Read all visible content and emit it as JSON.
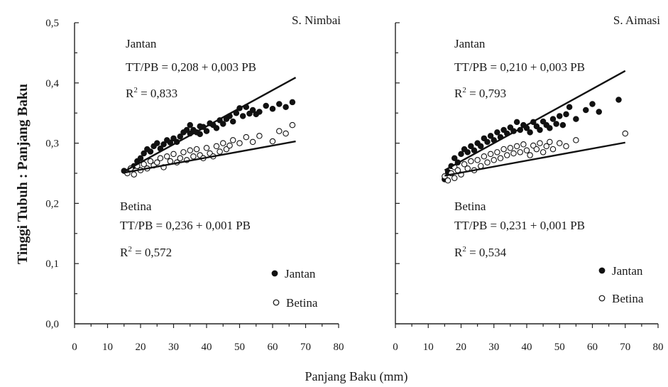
{
  "chart_data": [
    {
      "type": "scatter",
      "title": "S. Nimbai",
      "xlabel": "Panjang Baku (mm)",
      "ylabel": "Tinggi Tubuh : Panjang Baku",
      "xlim": [
        0,
        80
      ],
      "ylim": [
        0,
        0.5
      ],
      "x_ticks": [
        "0",
        "10",
        "20",
        "30",
        "40",
        "50",
        "60",
        "70",
        "80"
      ],
      "y_ticks": [
        "0,0",
        "0,1",
        "0,2",
        "0,3",
        "0,4",
        "0,5"
      ],
      "grid": false,
      "legend": {
        "position": "bottom-right",
        "entries": [
          {
            "marker": "filled-circle",
            "label": "Jantan"
          },
          {
            "marker": "open-circle",
            "label": "Betina"
          }
        ]
      },
      "annotations": {
        "jantan_label": "Jantan",
        "jantan_eq": "TT/PB = 0,208 + 0,003 PB",
        "jantan_r2_prefix": "R",
        "jantan_r2_value": " = 0,833",
        "betina_label": "Betina",
        "betina_eq": "TT/PB = 0,236 + 0,001 PB",
        "betina_r2_prefix": "R",
        "betina_r2_value": " = 0,572",
        "r2_exponent": "2"
      },
      "series": [
        {
          "name": "Jantan",
          "marker": "filled",
          "fit": {
            "intercept": 0.208,
            "slope": 0.003,
            "x_range": [
              15,
              67
            ]
          },
          "points": [
            [
              15,
              0.254
            ],
            [
              17,
              0.258
            ],
            [
              18,
              0.262
            ],
            [
              19,
              0.27
            ],
            [
              20,
              0.275
            ],
            [
              21,
              0.283
            ],
            [
              22,
              0.29
            ],
            [
              23,
              0.286
            ],
            [
              24,
              0.295
            ],
            [
              25,
              0.3
            ],
            [
              26,
              0.291
            ],
            [
              27,
              0.298
            ],
            [
              28,
              0.305
            ],
            [
              29,
              0.301
            ],
            [
              30,
              0.308
            ],
            [
              31,
              0.302
            ],
            [
              32,
              0.311
            ],
            [
              33,
              0.318
            ],
            [
              34,
              0.322
            ],
            [
              35,
              0.316
            ],
            [
              35,
              0.33
            ],
            [
              36,
              0.322
            ],
            [
              37,
              0.318
            ],
            [
              38,
              0.328
            ],
            [
              38,
              0.315
            ],
            [
              39,
              0.327
            ],
            [
              40,
              0.32
            ],
            [
              41,
              0.333
            ],
            [
              42,
              0.33
            ],
            [
              43,
              0.325
            ],
            [
              44,
              0.338
            ],
            [
              45,
              0.332
            ],
            [
              46,
              0.34
            ],
            [
              47,
              0.345
            ],
            [
              48,
              0.336
            ],
            [
              49,
              0.35
            ],
            [
              50,
              0.358
            ],
            [
              51,
              0.345
            ],
            [
              52,
              0.36
            ],
            [
              53,
              0.349
            ],
            [
              54,
              0.355
            ],
            [
              55,
              0.348
            ],
            [
              56,
              0.352
            ],
            [
              58,
              0.362
            ],
            [
              60,
              0.357
            ],
            [
              62,
              0.365
            ],
            [
              64,
              0.36
            ],
            [
              66,
              0.368
            ]
          ]
        },
        {
          "name": "Betina",
          "marker": "open",
          "fit": {
            "intercept": 0.236,
            "slope": 0.001,
            "x_range": [
              15,
              67
            ]
          },
          "points": [
            [
              16,
              0.25
            ],
            [
              17,
              0.258
            ],
            [
              18,
              0.248
            ],
            [
              19,
              0.262
            ],
            [
              20,
              0.255
            ],
            [
              21,
              0.265
            ],
            [
              22,
              0.258
            ],
            [
              23,
              0.27
            ],
            [
              24,
              0.263
            ],
            [
              25,
              0.268
            ],
            [
              26,
              0.275
            ],
            [
              27,
              0.26
            ],
            [
              28,
              0.278
            ],
            [
              29,
              0.27
            ],
            [
              30,
              0.282
            ],
            [
              31,
              0.268
            ],
            [
              32,
              0.275
            ],
            [
              33,
              0.285
            ],
            [
              34,
              0.272
            ],
            [
              35,
              0.288
            ],
            [
              36,
              0.278
            ],
            [
              37,
              0.29
            ],
            [
              38,
              0.28
            ],
            [
              39,
              0.275
            ],
            [
              40,
              0.292
            ],
            [
              41,
              0.283
            ],
            [
              42,
              0.278
            ],
            [
              43,
              0.295
            ],
            [
              44,
              0.286
            ],
            [
              45,
              0.3
            ],
            [
              46,
              0.29
            ],
            [
              47,
              0.296
            ],
            [
              48,
              0.305
            ],
            [
              50,
              0.3
            ],
            [
              52,
              0.31
            ],
            [
              54,
              0.302
            ],
            [
              56,
              0.312
            ],
            [
              60,
              0.303
            ],
            [
              62,
              0.32
            ],
            [
              64,
              0.316
            ],
            [
              66,
              0.33
            ]
          ]
        }
      ]
    },
    {
      "type": "scatter",
      "title": "S. Aimasi",
      "xlabel": "Panjang Baku (mm)",
      "ylabel": "Tinggi Tubuh : Panjang Baku",
      "xlim": [
        0,
        80
      ],
      "ylim": [
        0,
        0.5
      ],
      "x_ticks": [
        "0",
        "10",
        "20",
        "30",
        "40",
        "50",
        "60",
        "70",
        "80"
      ],
      "y_ticks": [
        "0,0",
        "0,1",
        "0,2",
        "0,3",
        "0,4",
        "0,5"
      ],
      "grid": false,
      "legend": {
        "position": "bottom-right",
        "entries": [
          {
            "marker": "filled-circle",
            "label": "Jantan"
          },
          {
            "marker": "open-circle",
            "label": "Betina"
          }
        ]
      },
      "annotations": {
        "jantan_label": "Jantan",
        "jantan_eq": "TT/PB = 0,210 + 0,003 PB",
        "jantan_r2_prefix": "R",
        "jantan_r2_value": " = 0,793",
        "betina_label": "Betina",
        "betina_eq": "TT/PB = 0,231 + 0,001 PB",
        "betina_r2_prefix": "R",
        "betina_r2_value": " = 0,534",
        "r2_exponent": "2"
      },
      "series": [
        {
          "name": "Jantan",
          "marker": "filled",
          "fit": {
            "intercept": 0.21,
            "slope": 0.003,
            "x_range": [
              15,
              70
            ]
          },
          "points": [
            [
              15,
              0.24
            ],
            [
              16,
              0.252
            ],
            [
              17,
              0.262
            ],
            [
              18,
              0.275
            ],
            [
              19,
              0.268
            ],
            [
              20,
              0.282
            ],
            [
              21,
              0.29
            ],
            [
              22,
              0.285
            ],
            [
              23,
              0.295
            ],
            [
              24,
              0.288
            ],
            [
              25,
              0.3
            ],
            [
              26,
              0.295
            ],
            [
              27,
              0.308
            ],
            [
              28,
              0.302
            ],
            [
              29,
              0.312
            ],
            [
              30,
              0.305
            ],
            [
              31,
              0.318
            ],
            [
              32,
              0.31
            ],
            [
              33,
              0.322
            ],
            [
              34,
              0.316
            ],
            [
              35,
              0.326
            ],
            [
              36,
              0.32
            ],
            [
              37,
              0.335
            ],
            [
              38,
              0.322
            ],
            [
              39,
              0.33
            ],
            [
              40,
              0.325
            ],
            [
              41,
              0.318
            ],
            [
              42,
              0.335
            ],
            [
              43,
              0.328
            ],
            [
              44,
              0.322
            ],
            [
              45,
              0.336
            ],
            [
              46,
              0.33
            ],
            [
              47,
              0.325
            ],
            [
              48,
              0.34
            ],
            [
              49,
              0.332
            ],
            [
              50,
              0.345
            ],
            [
              51,
              0.33
            ],
            [
              52,
              0.348
            ],
            [
              53,
              0.36
            ],
            [
              55,
              0.34
            ],
            [
              58,
              0.355
            ],
            [
              60,
              0.365
            ],
            [
              62,
              0.352
            ],
            [
              68,
              0.372
            ]
          ]
        },
        {
          "name": "Betina",
          "marker": "open",
          "fit": {
            "intercept": 0.231,
            "slope": 0.001,
            "x_range": [
              15,
              70
            ]
          },
          "points": [
            [
              15,
              0.245
            ],
            [
              16,
              0.238
            ],
            [
              17,
              0.25
            ],
            [
              18,
              0.26
            ],
            [
              18,
              0.242
            ],
            [
              19,
              0.255
            ],
            [
              20,
              0.248
            ],
            [
              21,
              0.265
            ],
            [
              22,
              0.258
            ],
            [
              23,
              0.27
            ],
            [
              24,
              0.255
            ],
            [
              25,
              0.272
            ],
            [
              26,
              0.262
            ],
            [
              27,
              0.278
            ],
            [
              28,
              0.268
            ],
            [
              29,
              0.282
            ],
            [
              30,
              0.272
            ],
            [
              31,
              0.285
            ],
            [
              32,
              0.275
            ],
            [
              33,
              0.29
            ],
            [
              34,
              0.28
            ],
            [
              35,
              0.292
            ],
            [
              36,
              0.283
            ],
            [
              37,
              0.295
            ],
            [
              38,
              0.285
            ],
            [
              39,
              0.298
            ],
            [
              40,
              0.288
            ],
            [
              41,
              0.28
            ],
            [
              42,
              0.296
            ],
            [
              43,
              0.29
            ],
            [
              44,
              0.3
            ],
            [
              45,
              0.285
            ],
            [
              46,
              0.295
            ],
            [
              47,
              0.302
            ],
            [
              48,
              0.29
            ],
            [
              50,
              0.3
            ],
            [
              52,
              0.295
            ],
            [
              55,
              0.305
            ],
            [
              70,
              0.316
            ]
          ]
        }
      ]
    }
  ],
  "figure": {
    "ylabel": "Tinggi Tubuh : Panjang Baku",
    "xlabel": "Panjang Baku (mm)"
  }
}
